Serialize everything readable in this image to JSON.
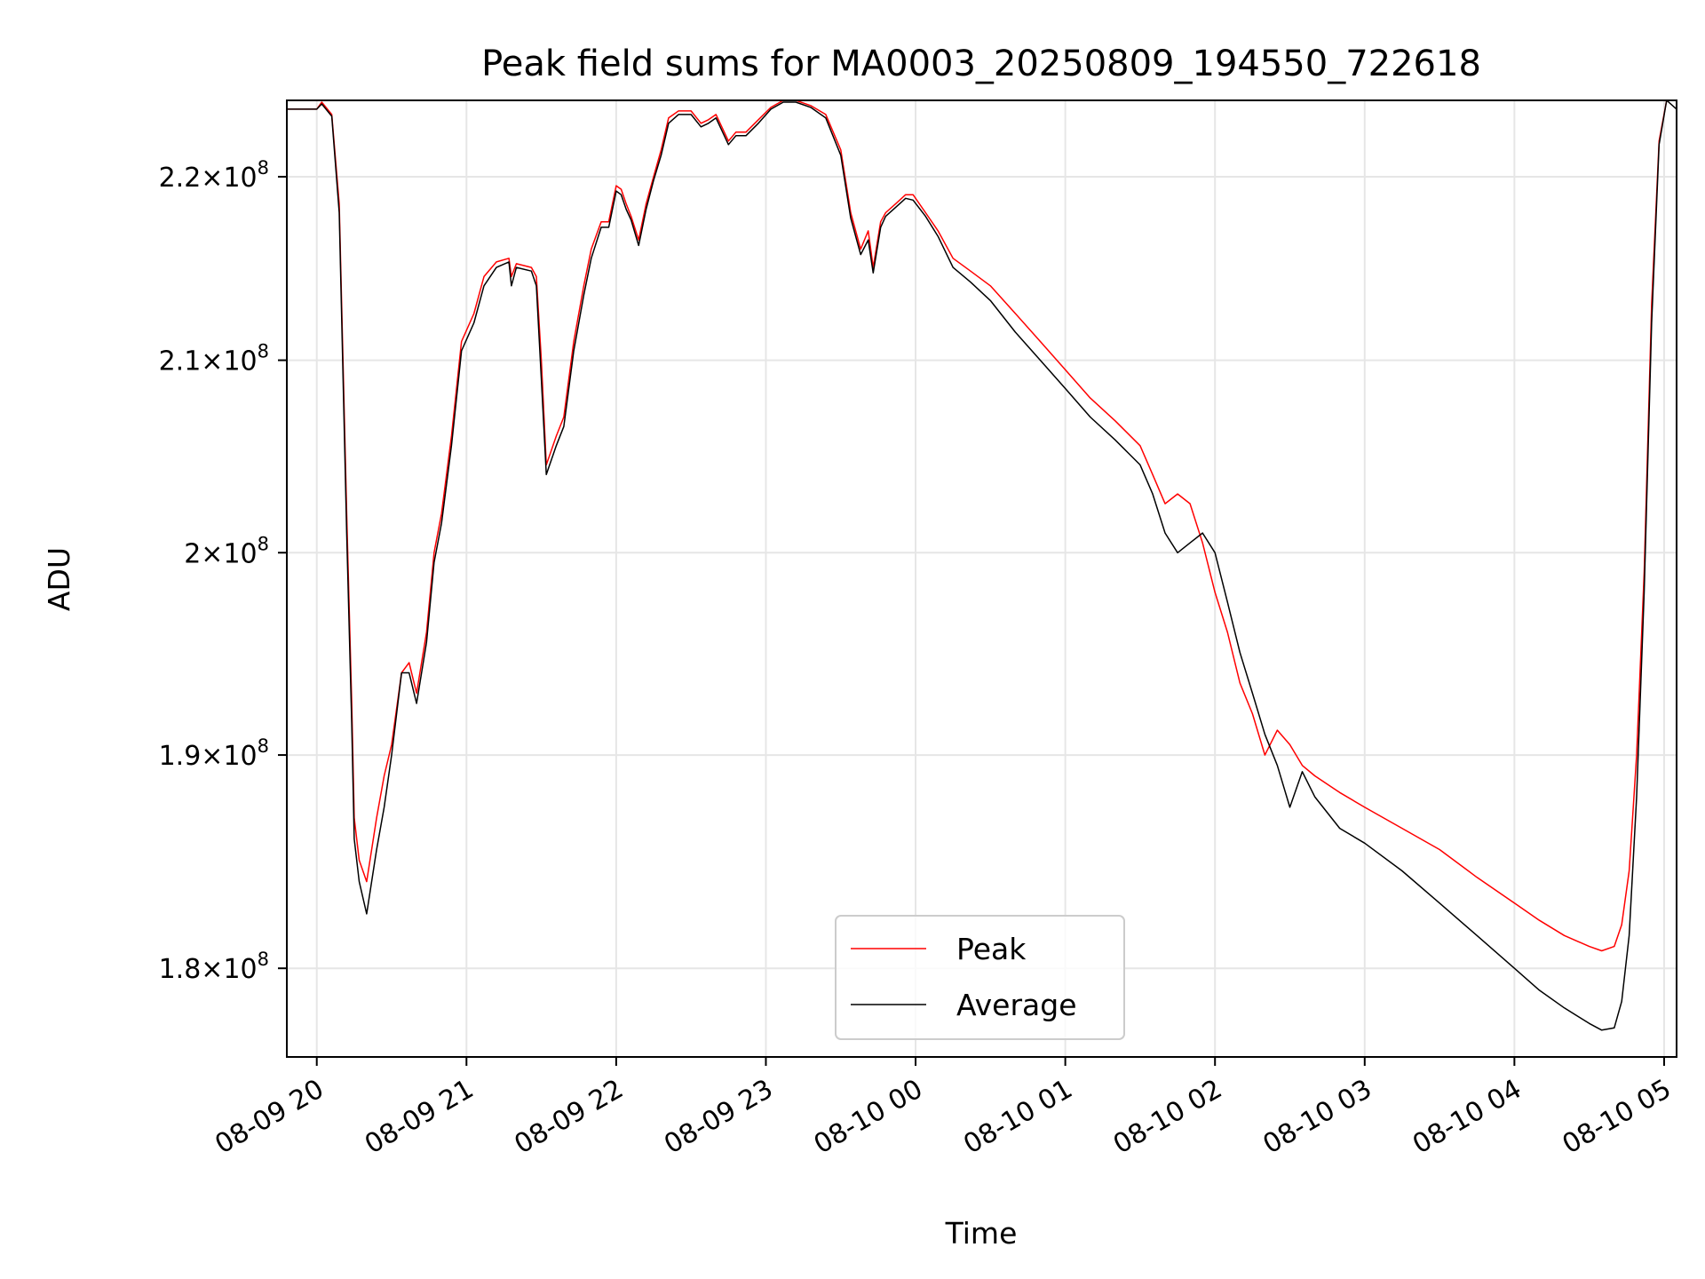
{
  "chart_data": {
    "type": "line",
    "title": "Peak field sums for MA0003_20250809_194550_722618",
    "xlabel": "Time",
    "ylabel": "ADU",
    "x_type": "time",
    "xlim": [
      "2025-08-09 19:48",
      "2025-08-10 05:05"
    ],
    "ylim": [
      176000000.0,
      224300000.0
    ],
    "y_scale": "log",
    "grid": true,
    "legend_position": "lower center",
    "x_ticks": [
      {
        "value": "2025-08-09 20:00",
        "label": "08-09 20"
      },
      {
        "value": "2025-08-09 21:00",
        "label": "08-09 21"
      },
      {
        "value": "2025-08-09 22:00",
        "label": "08-09 22"
      },
      {
        "value": "2025-08-09 23:00",
        "label": "08-09 23"
      },
      {
        "value": "2025-08-10 00:00",
        "label": "08-10 00"
      },
      {
        "value": "2025-08-10 01:00",
        "label": "08-10 01"
      },
      {
        "value": "2025-08-10 02:00",
        "label": "08-10 02"
      },
      {
        "value": "2025-08-10 03:00",
        "label": "08-10 03"
      },
      {
        "value": "2025-08-10 04:00",
        "label": "08-10 04"
      },
      {
        "value": "2025-08-10 05:00",
        "label": "08-10 05"
      }
    ],
    "y_ticks": [
      {
        "value": 180000000.0,
        "mantissa": "1.8",
        "base": "10",
        "exp": "8"
      },
      {
        "value": 190000000.0,
        "mantissa": "1.9",
        "base": "10",
        "exp": "8"
      },
      {
        "value": 200000000.0,
        "mantissa": "2",
        "base": "10",
        "exp": "8"
      },
      {
        "value": 210000000.0,
        "mantissa": "2.1",
        "base": "10",
        "exp": "8"
      },
      {
        "value": 220000000.0,
        "mantissa": "2.2",
        "base": "10",
        "exp": "8"
      }
    ],
    "series": [
      {
        "name": "Peak",
        "color": "#ff0000",
        "x": [
          "2025-08-09 19:48",
          "2025-08-09 20:00",
          "2025-08-09 20:02",
          "2025-08-09 20:06",
          "2025-08-09 20:09",
          "2025-08-09 20:12",
          "2025-08-09 20:14",
          "2025-08-09 20:15",
          "2025-08-09 20:17",
          "2025-08-09 20:20",
          "2025-08-09 20:24",
          "2025-08-09 20:27",
          "2025-08-09 20:30",
          "2025-08-09 20:34",
          "2025-08-09 20:37",
          "2025-08-09 20:40",
          "2025-08-09 20:44",
          "2025-08-09 20:47",
          "2025-08-09 20:50",
          "2025-08-09 20:54",
          "2025-08-09 20:58",
          "2025-08-09 21:03",
          "2025-08-09 21:07",
          "2025-08-09 21:12",
          "2025-08-09 21:17",
          "2025-08-09 21:18",
          "2025-08-09 21:20",
          "2025-08-09 21:26",
          "2025-08-09 21:28",
          "2025-08-09 21:30",
          "2025-08-09 21:32",
          "2025-08-09 21:36",
          "2025-08-09 21:39",
          "2025-08-09 21:43",
          "2025-08-09 21:47",
          "2025-08-09 21:50",
          "2025-08-09 21:54",
          "2025-08-09 21:57",
          "2025-08-09 22:00",
          "2025-08-09 22:02",
          "2025-08-09 22:04",
          "2025-08-09 22:06",
          "2025-08-09 22:09",
          "2025-08-09 22:12",
          "2025-08-09 22:15",
          "2025-08-09 22:18",
          "2025-08-09 22:21",
          "2025-08-09 22:25",
          "2025-08-09 22:30",
          "2025-08-09 22:34",
          "2025-08-09 22:37",
          "2025-08-09 22:40",
          "2025-08-09 22:45",
          "2025-08-09 22:48",
          "2025-08-09 22:52",
          "2025-08-09 22:57",
          "2025-08-09 23:02",
          "2025-08-09 23:07",
          "2025-08-09 23:12",
          "2025-08-09 23:18",
          "2025-08-09 23:24",
          "2025-08-09 23:30",
          "2025-08-09 23:34",
          "2025-08-09 23:38",
          "2025-08-09 23:41",
          "2025-08-09 23:43",
          "2025-08-09 23:46",
          "2025-08-09 23:48",
          "2025-08-09 23:52",
          "2025-08-09 23:56",
          "2025-08-09 23:59",
          "2025-08-10 00:04",
          "2025-08-10 00:09",
          "2025-08-10 00:15",
          "2025-08-10 00:22",
          "2025-08-10 00:30",
          "2025-08-10 00:40",
          "2025-08-10 00:50",
          "2025-08-10 01:00",
          "2025-08-10 01:10",
          "2025-08-10 01:20",
          "2025-08-10 01:30",
          "2025-08-10 01:35",
          "2025-08-10 01:40",
          "2025-08-10 01:45",
          "2025-08-10 01:50",
          "2025-08-10 01:55",
          "2025-08-10 02:00",
          "2025-08-10 02:05",
          "2025-08-10 02:10",
          "2025-08-10 02:15",
          "2025-08-10 02:20",
          "2025-08-10 02:25",
          "2025-08-10 02:30",
          "2025-08-10 02:35",
          "2025-08-10 02:40",
          "2025-08-10 02:50",
          "2025-08-10 03:00",
          "2025-08-10 03:15",
          "2025-08-10 03:30",
          "2025-08-10 03:45",
          "2025-08-10 04:00",
          "2025-08-10 04:10",
          "2025-08-10 04:20",
          "2025-08-10 04:30",
          "2025-08-10 04:35",
          "2025-08-10 04:40",
          "2025-08-10 04:43",
          "2025-08-10 04:46",
          "2025-08-10 04:49",
          "2025-08-10 04:52",
          "2025-08-10 04:55",
          "2025-08-10 04:58",
          "2025-08-10 05:01",
          "2025-08-10 05:05"
        ],
        "y": [
          223800000.0,
          223800000.0,
          224200000.0,
          223500000.0,
          218500000.0,
          202000000.0,
          192500000.0,
          187000000.0,
          185000000.0,
          184000000.0,
          187000000.0,
          189000000.0,
          190500000.0,
          194000000.0,
          194500000.0,
          193000000.0,
          196000000.0,
          200000000.0,
          202000000.0,
          206000000.0,
          211000000.0,
          212500000.0,
          214500000.0,
          215300000.0,
          215500000.0,
          214500000.0,
          215200000.0,
          215000000.0,
          214500000.0,
          210000000.0,
          204500000.0,
          206000000.0,
          207000000.0,
          211000000.0,
          214000000.0,
          216000000.0,
          217500000.0,
          217500000.0,
          219500000.0,
          219300000.0,
          218500000.0,
          217800000.0,
          216500000.0,
          218500000.0,
          220000000.0,
          221500000.0,
          223300000.0,
          223700000.0,
          223700000.0,
          223000000.0,
          223200000.0,
          223500000.0,
          222000000.0,
          222500000.0,
          222500000.0,
          223200000.0,
          223900000.0,
          224300000.0,
          224300000.0,
          224000000.0,
          223500000.0,
          221500000.0,
          218000000.0,
          216000000.0,
          217000000.0,
          215000000.0,
          217500000.0,
          218000000.0,
          218500000.0,
          219000000.0,
          219000000.0,
          218000000.0,
          217000000.0,
          215500000.0,
          214800000.0,
          214000000.0,
          212500000.0,
          211000000.0,
          209500000.0,
          208000000.0,
          206800000.0,
          205500000.0,
          204000000.0,
          202500000.0,
          203000000.0,
          202500000.0,
          200500000.0,
          198000000.0,
          196000000.0,
          193500000.0,
          192000000.0,
          190000000.0,
          191200000.0,
          190500000.0,
          189500000.0,
          189000000.0,
          188200000.0,
          187500000.0,
          186500000.0,
          185500000.0,
          184200000.0,
          183000000.0,
          182200000.0,
          181500000.0,
          181000000.0,
          180800000.0,
          181000000.0,
          182000000.0,
          184500000.0,
          190000000.0,
          199000000.0,
          213000000.0,
          222000000.0,
          224300000.0,
          224300000.0
        ]
      },
      {
        "name": "Average",
        "color": "#000000",
        "x": [
          "2025-08-09 19:48",
          "2025-08-09 20:00",
          "2025-08-09 20:02",
          "2025-08-09 20:06",
          "2025-08-09 20:09",
          "2025-08-09 20:12",
          "2025-08-09 20:14",
          "2025-08-09 20:15",
          "2025-08-09 20:17",
          "2025-08-09 20:20",
          "2025-08-09 20:24",
          "2025-08-09 20:27",
          "2025-08-09 20:30",
          "2025-08-09 20:34",
          "2025-08-09 20:37",
          "2025-08-09 20:40",
          "2025-08-09 20:44",
          "2025-08-09 20:47",
          "2025-08-09 20:50",
          "2025-08-09 20:54",
          "2025-08-09 20:58",
          "2025-08-09 21:03",
          "2025-08-09 21:07",
          "2025-08-09 21:12",
          "2025-08-09 21:17",
          "2025-08-09 21:18",
          "2025-08-09 21:20",
          "2025-08-09 21:26",
          "2025-08-09 21:28",
          "2025-08-09 21:30",
          "2025-08-09 21:32",
          "2025-08-09 21:36",
          "2025-08-09 21:39",
          "2025-08-09 21:43",
          "2025-08-09 21:47",
          "2025-08-09 21:50",
          "2025-08-09 21:54",
          "2025-08-09 21:57",
          "2025-08-09 22:00",
          "2025-08-09 22:02",
          "2025-08-09 22:04",
          "2025-08-09 22:06",
          "2025-08-09 22:09",
          "2025-08-09 22:12",
          "2025-08-09 22:15",
          "2025-08-09 22:18",
          "2025-08-09 22:21",
          "2025-08-09 22:25",
          "2025-08-09 22:30",
          "2025-08-09 22:34",
          "2025-08-09 22:37",
          "2025-08-09 22:40",
          "2025-08-09 22:45",
          "2025-08-09 22:48",
          "2025-08-09 22:52",
          "2025-08-09 22:57",
          "2025-08-09 23:02",
          "2025-08-09 23:07",
          "2025-08-09 23:12",
          "2025-08-09 23:18",
          "2025-08-09 23:24",
          "2025-08-09 23:30",
          "2025-08-09 23:34",
          "2025-08-09 23:38",
          "2025-08-09 23:41",
          "2025-08-09 23:43",
          "2025-08-09 23:46",
          "2025-08-09 23:48",
          "2025-08-09 23:52",
          "2025-08-09 23:56",
          "2025-08-09 23:59",
          "2025-08-10 00:04",
          "2025-08-10 00:09",
          "2025-08-10 00:15",
          "2025-08-10 00:22",
          "2025-08-10 00:30",
          "2025-08-10 00:40",
          "2025-08-10 00:50",
          "2025-08-10 01:00",
          "2025-08-10 01:10",
          "2025-08-10 01:20",
          "2025-08-10 01:30",
          "2025-08-10 01:35",
          "2025-08-10 01:40",
          "2025-08-10 01:45",
          "2025-08-10 01:50",
          "2025-08-10 01:55",
          "2025-08-10 02:00",
          "2025-08-10 02:05",
          "2025-08-10 02:10",
          "2025-08-10 02:15",
          "2025-08-10 02:20",
          "2025-08-10 02:25",
          "2025-08-10 02:30",
          "2025-08-10 02:35",
          "2025-08-10 02:40",
          "2025-08-10 02:50",
          "2025-08-10 03:00",
          "2025-08-10 03:15",
          "2025-08-10 03:30",
          "2025-08-10 03:45",
          "2025-08-10 04:00",
          "2025-08-10 04:10",
          "2025-08-10 04:20",
          "2025-08-10 04:30",
          "2025-08-10 04:35",
          "2025-08-10 04:40",
          "2025-08-10 04:43",
          "2025-08-10 04:46",
          "2025-08-10 04:49",
          "2025-08-10 04:52",
          "2025-08-10 04:55",
          "2025-08-10 04:58",
          "2025-08-10 05:01",
          "2025-08-10 05:05"
        ],
        "y": [
          223800000.0,
          223800000.0,
          224100000.0,
          223400000.0,
          218000000.0,
          201000000.0,
          191500000.0,
          186000000.0,
          184000000.0,
          182500000.0,
          185500000.0,
          187500000.0,
          190000000.0,
          194000000.0,
          194000000.0,
          192500000.0,
          195500000.0,
          199500000.0,
          201500000.0,
          205500000.0,
          210500000.0,
          212000000.0,
          214000000.0,
          215000000.0,
          215300000.0,
          214000000.0,
          215000000.0,
          214800000.0,
          214000000.0,
          209000000.0,
          204000000.0,
          205500000.0,
          206500000.0,
          210500000.0,
          213500000.0,
          215500000.0,
          217200000.0,
          217200000.0,
          219200000.0,
          219000000.0,
          218200000.0,
          217600000.0,
          216200000.0,
          218200000.0,
          219800000.0,
          221200000.0,
          223000000.0,
          223500000.0,
          223500000.0,
          222800000.0,
          223000000.0,
          223300000.0,
          221800000.0,
          222300000.0,
          222300000.0,
          223000000.0,
          223800000.0,
          224200000.0,
          224200000.0,
          223900000.0,
          223300000.0,
          221200000.0,
          217700000.0,
          215700000.0,
          216500000.0,
          214700000.0,
          217200000.0,
          217800000.0,
          218300000.0,
          218800000.0,
          218700000.0,
          217800000.0,
          216700000.0,
          215000000.0,
          214200000.0,
          213200000.0,
          211500000.0,
          210000000.0,
          208500000.0,
          207000000.0,
          205800000.0,
          204500000.0,
          203000000.0,
          201000000.0,
          200000000.0,
          200500000.0,
          201000000.0,
          200000000.0,
          197500000.0,
          195000000.0,
          193000000.0,
          191000000.0,
          189500000.0,
          187500000.0,
          189200000.0,
          188000000.0,
          186500000.0,
          185800000.0,
          184500000.0,
          183000000.0,
          181500000.0,
          180000000.0,
          179000000.0,
          178200000.0,
          177500000.0,
          177200000.0,
          177300000.0,
          178500000.0,
          181500000.0,
          188000000.0,
          198000000.0,
          212000000.0,
          221800000.0,
          224300000.0,
          223800000.0
        ]
      }
    ]
  }
}
